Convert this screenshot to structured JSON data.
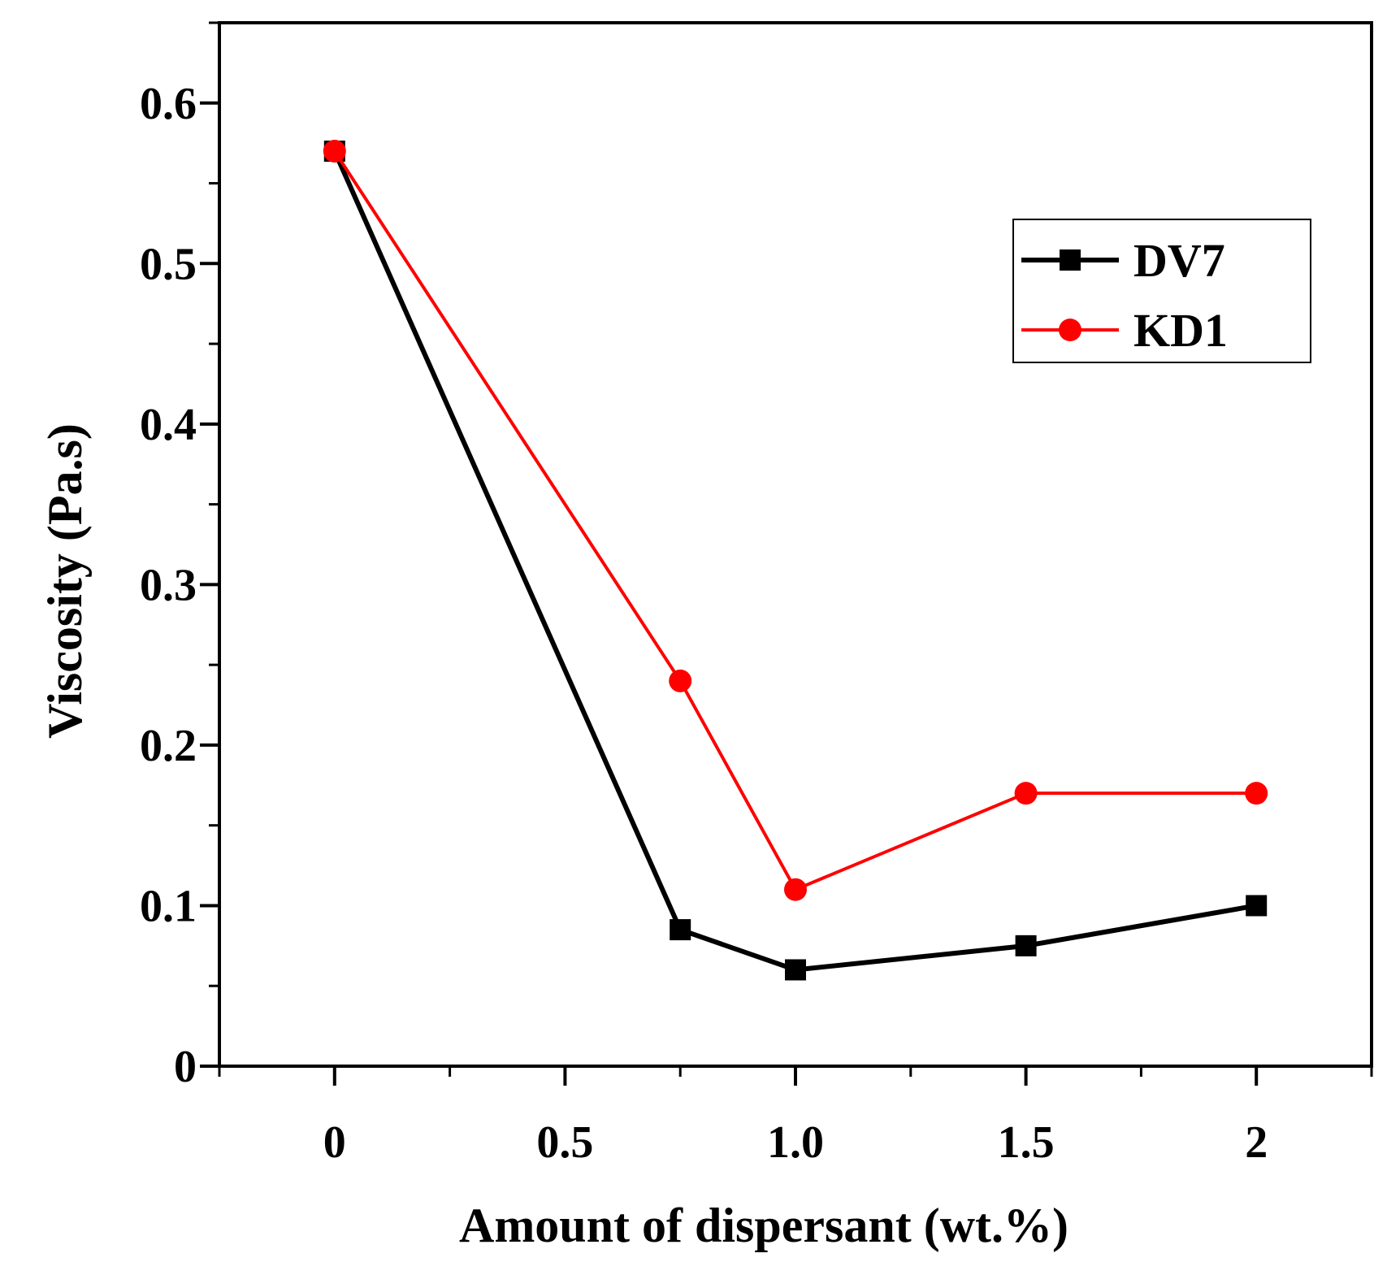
{
  "chart_data": {
    "type": "line",
    "xlabel": "Amount of dispersant (wt.%)",
    "ylabel": "Viscosity (Pa.s)",
    "xlim": [
      -0.25,
      2.25
    ],
    "ylim": [
      0,
      0.65
    ],
    "x_ticks": [
      {
        "value": 0,
        "label": "0"
      },
      {
        "value": 0.5,
        "label": "0.5"
      },
      {
        "value": 1.0,
        "label": "1.0"
      },
      {
        "value": 1.5,
        "label": "1.5"
      },
      {
        "value": 2,
        "label": "2"
      }
    ],
    "x_minor_ticks": [
      -0.25,
      0.25,
      0.75,
      1.25,
      1.75,
      2.25
    ],
    "y_ticks": [
      {
        "value": 0,
        "label": "0"
      },
      {
        "value": 0.1,
        "label": "0.1"
      },
      {
        "value": 0.2,
        "label": "0.2"
      },
      {
        "value": 0.3,
        "label": "0.3"
      },
      {
        "value": 0.4,
        "label": "0.4"
      },
      {
        "value": 0.5,
        "label": "0.5"
      },
      {
        "value": 0.6,
        "label": "0.6"
      }
    ],
    "y_minor_ticks": [
      0.05,
      0.15,
      0.25,
      0.35,
      0.45,
      0.55,
      0.65
    ],
    "grid": false,
    "legend_position": "top-right",
    "series": [
      {
        "name": "DV7",
        "color": "#000000",
        "marker": "square",
        "x": [
          0,
          0.75,
          1.0,
          1.5,
          2.0
        ],
        "y": [
          0.57,
          0.085,
          0.06,
          0.075,
          0.1
        ]
      },
      {
        "name": "KD1",
        "color": "#ff0000",
        "marker": "circle",
        "x": [
          0,
          0.75,
          1.0,
          1.5,
          2.0
        ],
        "y": [
          0.57,
          0.24,
          0.11,
          0.17,
          0.17
        ]
      }
    ]
  }
}
